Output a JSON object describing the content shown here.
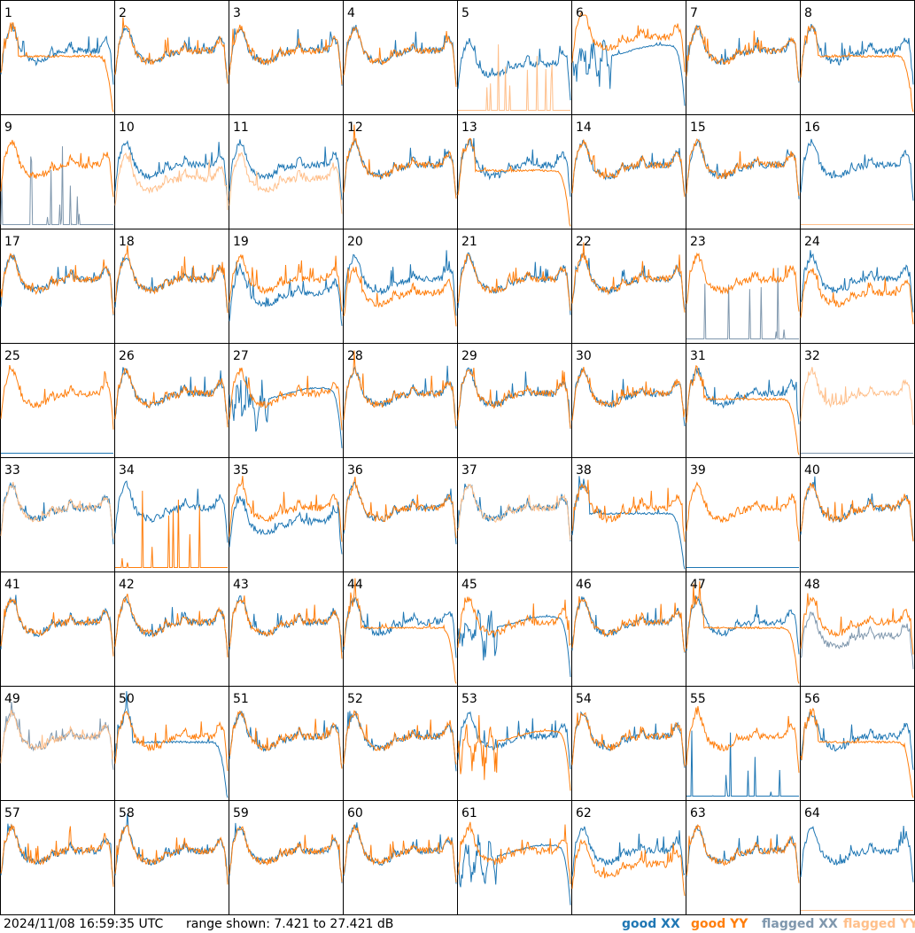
{
  "footer": {
    "timestamp": "2024/11/08 16:59:35 UTC",
    "range_text": "range shown: 7.421 to 27.421 dB",
    "legend": [
      {
        "label": "good XX",
        "color": "#1f77b4"
      },
      {
        "label": "good YY",
        "color": "#ff7f0e"
      },
      {
        "label": "flagged XX",
        "color": "#7f97ad"
      },
      {
        "label": "flagged YY",
        "color": "#ffbf8a"
      }
    ]
  },
  "chart_data": {
    "type": "line",
    "layout": "small multiples 8x8",
    "ylim": [
      7.421,
      27.421
    ],
    "yunit": "dB",
    "colors": {
      "good_xx": "#1f77b4",
      "good_yy": "#ff7f0e",
      "flagged_xx": "#7f97ad",
      "flagged_yy": "#ffbf8a"
    },
    "panels": [
      {
        "label": "1",
        "xx": "normal",
        "yy": "rolloff",
        "xx_flag": false,
        "yy_flag": false
      },
      {
        "label": "2",
        "xx": "normal",
        "yy": "normal",
        "xx_flag": false,
        "yy_flag": false
      },
      {
        "label": "3",
        "xx": "normal",
        "yy": "normal",
        "xx_flag": false,
        "yy_flag": false
      },
      {
        "label": "4",
        "xx": "normal",
        "yy": "normal",
        "xx_flag": false,
        "yy_flag": false
      },
      {
        "label": "5",
        "xx": "low",
        "yy": "spikes",
        "xx_flag": false,
        "yy_flag": true
      },
      {
        "label": "6",
        "xx": "dip",
        "yy": "high",
        "xx_flag": false,
        "yy_flag": false
      },
      {
        "label": "7",
        "xx": "normal",
        "yy": "normal",
        "xx_flag": false,
        "yy_flag": false
      },
      {
        "label": "8",
        "xx": "normal",
        "yy": "rolloff",
        "xx_flag": false,
        "yy_flag": false
      },
      {
        "label": "9",
        "xx": "spikes",
        "yy": "normal",
        "xx_flag": true,
        "yy_flag": false
      },
      {
        "label": "10",
        "xx": "normal",
        "yy": "low",
        "xx_flag": false,
        "yy_flag": true
      },
      {
        "label": "11",
        "xx": "normal",
        "yy": "low",
        "xx_flag": false,
        "yy_flag": true
      },
      {
        "label": "12",
        "xx": "normal",
        "yy": "normal",
        "xx_flag": false,
        "yy_flag": false
      },
      {
        "label": "13",
        "xx": "normal",
        "yy": "rolloff",
        "xx_flag": false,
        "yy_flag": false
      },
      {
        "label": "14",
        "xx": "normal",
        "yy": "normal",
        "xx_flag": false,
        "yy_flag": false
      },
      {
        "label": "15",
        "xx": "normal",
        "yy": "normal",
        "xx_flag": false,
        "yy_flag": false
      },
      {
        "label": "16",
        "xx": "normal",
        "yy": "flat",
        "xx_flag": false,
        "yy_flag": true
      },
      {
        "label": "17",
        "xx": "normal",
        "yy": "normal",
        "xx_flag": false,
        "yy_flag": false
      },
      {
        "label": "18",
        "xx": "normal",
        "yy": "normal",
        "xx_flag": false,
        "yy_flag": false
      },
      {
        "label": "19",
        "xx": "low",
        "yy": "normal",
        "xx_flag": false,
        "yy_flag": false
      },
      {
        "label": "20",
        "xx": "normal",
        "yy": "low",
        "xx_flag": false,
        "yy_flag": false
      },
      {
        "label": "21",
        "xx": "normal",
        "yy": "normal",
        "xx_flag": false,
        "yy_flag": false
      },
      {
        "label": "22",
        "xx": "normal",
        "yy": "normal",
        "xx_flag": false,
        "yy_flag": false
      },
      {
        "label": "23",
        "xx": "spikes",
        "yy": "normal",
        "xx_flag": true,
        "yy_flag": false
      },
      {
        "label": "24",
        "xx": "normal",
        "yy": "low",
        "xx_flag": false,
        "yy_flag": false
      },
      {
        "label": "25",
        "xx": "flat",
        "yy": "normal",
        "xx_flag": false,
        "yy_flag": false
      },
      {
        "label": "26",
        "xx": "normal",
        "yy": "normal",
        "xx_flag": false,
        "yy_flag": false
      },
      {
        "label": "27",
        "xx": "dip",
        "yy": "normal",
        "xx_flag": false,
        "yy_flag": false
      },
      {
        "label": "28",
        "xx": "normal",
        "yy": "normal",
        "xx_flag": false,
        "yy_flag": false
      },
      {
        "label": "29",
        "xx": "normal",
        "yy": "normal",
        "xx_flag": false,
        "yy_flag": false
      },
      {
        "label": "30",
        "xx": "normal",
        "yy": "normal",
        "xx_flag": false,
        "yy_flag": false
      },
      {
        "label": "31",
        "xx": "normal",
        "yy": "rolloff",
        "xx_flag": false,
        "yy_flag": false
      },
      {
        "label": "32",
        "xx": "flat",
        "yy": "normal",
        "xx_flag": true,
        "yy_flag": true
      },
      {
        "label": "33",
        "xx": "normal",
        "yy": "normal",
        "xx_flag": false,
        "yy_flag": true
      },
      {
        "label": "34",
        "xx": "normal",
        "yy": "spikes",
        "xx_flag": false,
        "yy_flag": false
      },
      {
        "label": "35",
        "xx": "low",
        "yy": "normal",
        "xx_flag": false,
        "yy_flag": false
      },
      {
        "label": "36",
        "xx": "normal",
        "yy": "normal",
        "xx_flag": false,
        "yy_flag": false
      },
      {
        "label": "37",
        "xx": "normal",
        "yy": "normal",
        "xx_flag": false,
        "yy_flag": true
      },
      {
        "label": "38",
        "xx": "rolloff",
        "yy": "normal",
        "xx_flag": false,
        "yy_flag": false
      },
      {
        "label": "39",
        "xx": "flat",
        "yy": "normal",
        "xx_flag": false,
        "yy_flag": false
      },
      {
        "label": "40",
        "xx": "normal",
        "yy": "normal",
        "xx_flag": false,
        "yy_flag": false
      },
      {
        "label": "41",
        "xx": "normal",
        "yy": "normal",
        "xx_flag": false,
        "yy_flag": false
      },
      {
        "label": "42",
        "xx": "normal",
        "yy": "normal",
        "xx_flag": false,
        "yy_flag": false
      },
      {
        "label": "43",
        "xx": "normal",
        "yy": "normal",
        "xx_flag": false,
        "yy_flag": false
      },
      {
        "label": "44",
        "xx": "normal",
        "yy": "rolloff",
        "xx_flag": false,
        "yy_flag": false
      },
      {
        "label": "45",
        "xx": "dip",
        "yy": "normal",
        "xx_flag": false,
        "yy_flag": false
      },
      {
        "label": "46",
        "xx": "normal",
        "yy": "normal",
        "xx_flag": false,
        "yy_flag": false
      },
      {
        "label": "47",
        "xx": "normal",
        "yy": "rolloff",
        "xx_flag": false,
        "yy_flag": false
      },
      {
        "label": "48",
        "xx": "low",
        "yy": "normal",
        "xx_flag": true,
        "yy_flag": false
      },
      {
        "label": "49",
        "xx": "normal",
        "yy": "normal",
        "xx_flag": true,
        "yy_flag": true
      },
      {
        "label": "50",
        "xx": "rolloff",
        "yy": "normal",
        "xx_flag": false,
        "yy_flag": false
      },
      {
        "label": "51",
        "xx": "normal",
        "yy": "normal",
        "xx_flag": false,
        "yy_flag": false
      },
      {
        "label": "52",
        "xx": "normal",
        "yy": "normal",
        "xx_flag": false,
        "yy_flag": false
      },
      {
        "label": "53",
        "xx": "normal",
        "yy": "dip",
        "xx_flag": false,
        "yy_flag": false
      },
      {
        "label": "54",
        "xx": "normal",
        "yy": "normal",
        "xx_flag": false,
        "yy_flag": false
      },
      {
        "label": "55",
        "xx": "spikes",
        "yy": "normal",
        "xx_flag": false,
        "yy_flag": false
      },
      {
        "label": "56",
        "xx": "normal",
        "yy": "rolloff",
        "xx_flag": false,
        "yy_flag": false
      },
      {
        "label": "57",
        "xx": "normal",
        "yy": "normal",
        "xx_flag": false,
        "yy_flag": false
      },
      {
        "label": "58",
        "xx": "normal",
        "yy": "normal",
        "xx_flag": false,
        "yy_flag": false
      },
      {
        "label": "59",
        "xx": "normal",
        "yy": "normal",
        "xx_flag": false,
        "yy_flag": false
      },
      {
        "label": "60",
        "xx": "normal",
        "yy": "normal",
        "xx_flag": false,
        "yy_flag": false
      },
      {
        "label": "61",
        "xx": "dip",
        "yy": "normal",
        "xx_flag": false,
        "yy_flag": false
      },
      {
        "label": "62",
        "xx": "normal",
        "yy": "low",
        "xx_flag": false,
        "yy_flag": false
      },
      {
        "label": "63",
        "xx": "normal",
        "yy": "normal",
        "xx_flag": false,
        "yy_flag": false
      },
      {
        "label": "64",
        "xx": "normal",
        "yy": "flat",
        "xx_flag": false,
        "yy_flag": true
      }
    ]
  }
}
